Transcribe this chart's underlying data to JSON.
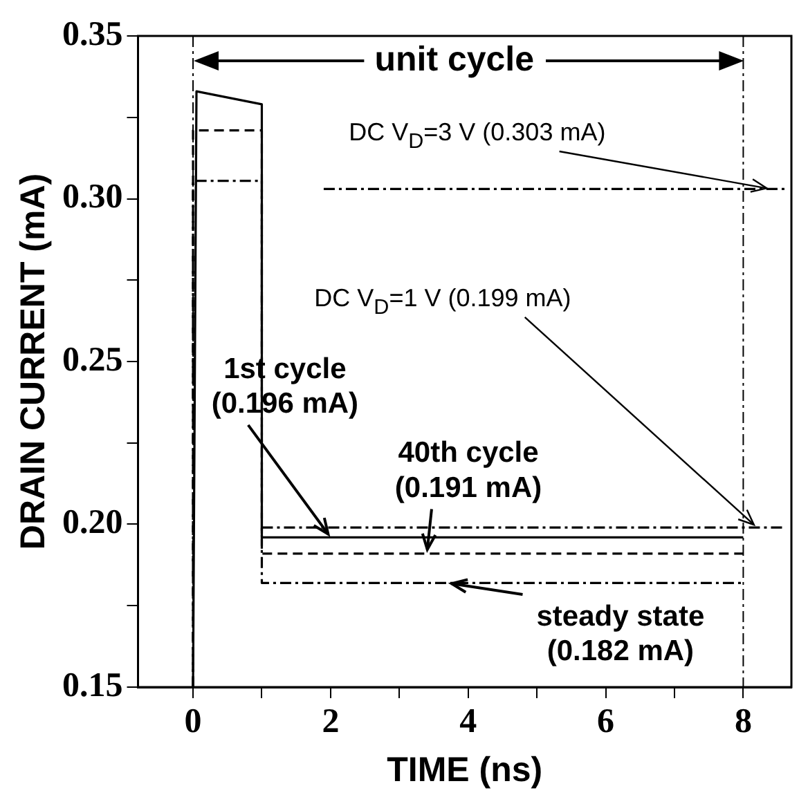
{
  "chart_data": {
    "type": "line",
    "xlabel": "TIME (ns)",
    "ylabel": "DRAIN CURRENT (mA)",
    "xlim": [
      -0.8,
      8.7
    ],
    "ylim": [
      0.15,
      0.35
    ],
    "xticks": [
      0,
      {
        "value": 1,
        "label": null
      },
      2,
      {
        "value": 3,
        "label": null
      },
      4,
      {
        "value": 5,
        "label": null
      },
      6,
      {
        "value": 7,
        "label": null
      },
      8
    ],
    "yticks": [
      {
        "value": 0.15,
        "label": "0.15"
      },
      {
        "value": 0.175,
        "label": null
      },
      {
        "value": 0.2,
        "label": "0.20"
      },
      {
        "value": 0.225,
        "label": null
      },
      {
        "value": 0.25,
        "label": "0.25"
      },
      {
        "value": 0.275,
        "label": null
      },
      {
        "value": 0.3,
        "label": "0.30"
      },
      {
        "value": 0.325,
        "label": null
      },
      {
        "value": 0.35,
        "label": "0.35"
      }
    ],
    "grid": false,
    "legend": false,
    "marker": "none",
    "series": [
      {
        "color": "#000000",
        "line_style": "solid",
        "x": [
          0,
          0.05,
          1,
          1,
          8
        ],
        "values": [
          0.15,
          0.333,
          0.329,
          0.196,
          0.196
        ]
      },
      {
        "color": "#000000",
        "line_style": "dashed",
        "x": [
          0,
          0,
          1,
          1,
          8
        ],
        "values": [
          0.15,
          0.321,
          0.321,
          0.191,
          0.191
        ]
      },
      {
        "color": "#000000",
        "line_style": "dotted",
        "x": [
          0,
          0,
          1,
          1,
          8
        ],
        "values": [
          0.15,
          0.3055,
          0.3055,
          0.182,
          0.182
        ]
      },
      {
        "color": "#000000",
        "line_style": "dotted",
        "x": [
          1.9,
          8.6
        ],
        "values": [
          0.303,
          0.303
        ]
      },
      {
        "color": "#000000",
        "line_style": "dotted",
        "x": [
          1,
          8.6
        ],
        "values": [
          0.199,
          0.199
        ]
      }
    ],
    "ref_lines": [
      {
        "axis": "x",
        "value": 0,
        "line_style": "dotted",
        "color": "#000000"
      },
      {
        "axis": "x",
        "value": 8,
        "line_style": "dotted",
        "color": "#000000"
      }
    ],
    "annotations": [
      "unit cycle",
      {
        "text": "DC V$_{D}$=3 V (0.303 mA)",
        "x": 8.4,
        "y": 0.303
      },
      {
        "text": "DC V$_{D}$=1 V (0.199 mA)",
        "x": 8.2,
        "y": 0.199
      },
      {
        "text": "1st cycle\n(0.196 mA)",
        "x": 2,
        "y": 0.196
      },
      {
        "text": "40th cycle\n(0.191 mA)",
        "x": 3.4,
        "y": 0.191
      },
      {
        "text": "steady state\n(0.182 mA)",
        "x": 3.7,
        "y": 0.182
      }
    ]
  }
}
